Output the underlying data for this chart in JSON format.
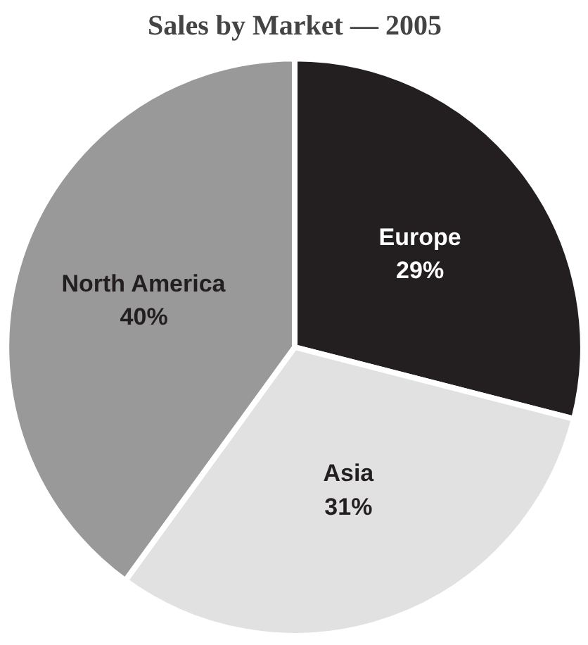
{
  "chart_data": {
    "type": "pie",
    "title": "Sales by Market — 2005",
    "categories": [
      "Europe",
      "Asia",
      "North America"
    ],
    "values": [
      29,
      31,
      40
    ],
    "colors": [
      "#231f20",
      "#e1e1e1",
      "#999999"
    ],
    "value_labels": [
      "29%",
      "31%",
      "40%"
    ]
  }
}
